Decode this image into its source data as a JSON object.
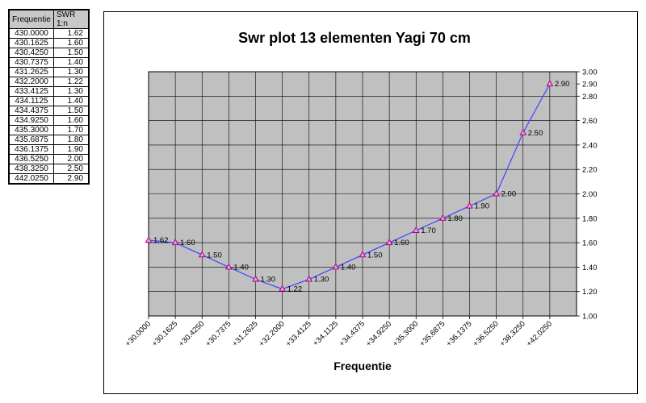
{
  "table": {
    "headers": [
      "Frequentie",
      "SWR 1:n"
    ],
    "rows": [
      [
        "430.0000",
        "1.62"
      ],
      [
        "430.1625",
        "1.60"
      ],
      [
        "430.4250",
        "1.50"
      ],
      [
        "430.7375",
        "1.40"
      ],
      [
        "431.2625",
        "1.30"
      ],
      [
        "432.2000",
        "1.22"
      ],
      [
        "433.4125",
        "1.30"
      ],
      [
        "434.1125",
        "1.40"
      ],
      [
        "434.4375",
        "1.50"
      ],
      [
        "434.9250",
        "1.60"
      ],
      [
        "435.3000",
        "1.70"
      ],
      [
        "435.6875",
        "1.80"
      ],
      [
        "436.1375",
        "1.90"
      ],
      [
        "436.5250",
        "2.00"
      ],
      [
        "438.3250",
        "2.50"
      ],
      [
        "442.0250",
        "2.90"
      ]
    ]
  },
  "chart_data": {
    "type": "line",
    "title": "Swr plot 13 elementen Yagi 70 cm",
    "xlabel": "Frequentie",
    "ylabel": "",
    "categories": [
      "+30.0000",
      "+30.1625",
      "+30.4250",
      "+30.7375",
      "+31.2625",
      "+32.2000",
      "+33.4125",
      "+34.1125",
      "+34.4375",
      "+34.9250",
      "+35.3000",
      "+35.6875",
      "+36.1375",
      "+36.5250",
      "+38.3250",
      "+42.0250"
    ],
    "values": [
      1.62,
      1.6,
      1.5,
      1.4,
      1.3,
      1.22,
      1.3,
      1.4,
      1.5,
      1.6,
      1.7,
      1.8,
      1.9,
      2.0,
      2.5,
      2.9
    ],
    "data_labels": [
      "1.62",
      "1.60",
      "1.50",
      "1.40",
      "1.30",
      "1.22",
      "1.30",
      "1.40",
      "1.50",
      "1.60",
      "1.70",
      "1.80",
      "1.90",
      "2.00",
      "2.50",
      "2.90"
    ],
    "ylim": [
      1.0,
      3.0
    ],
    "y_ticks": [
      "1.00",
      "1.20",
      "1.40",
      "1.60",
      "1.80",
      "2.00",
      "2.20",
      "2.40",
      "2.60",
      "2.80",
      "2.90",
      "3.00"
    ],
    "y_axis_side": "right",
    "grid": true,
    "colors": {
      "plot_background": "#c0c0c0",
      "line": "#4a4aff",
      "marker": "#b0007a",
      "grid": "#000000"
    }
  }
}
